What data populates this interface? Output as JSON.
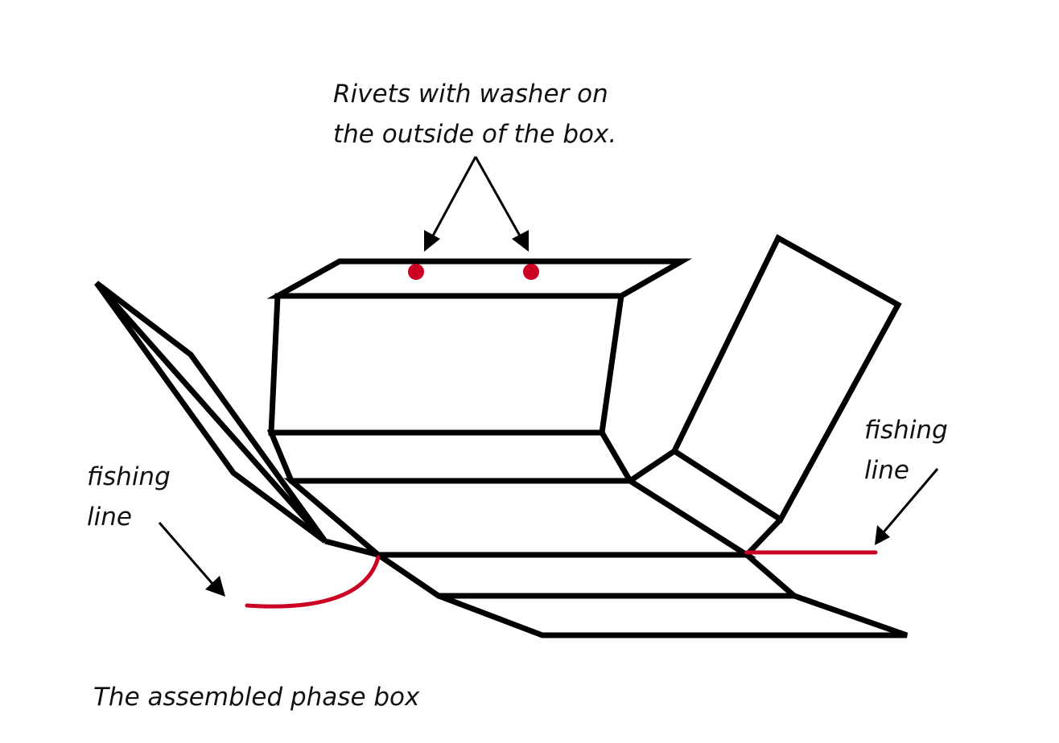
{
  "labels": {
    "rivets": {
      "line1": "Rivets with washer on",
      "line2": "the outside of the box."
    },
    "fishing_line_left": {
      "line1": "fishing",
      "line2": "line"
    },
    "fishing_line_right": {
      "line1": "fishing",
      "line2": "line"
    },
    "caption": "The assembled phase box"
  },
  "colors": {
    "outline": "#000000",
    "fishing_line": "#cc0022",
    "rivet": "#cc0022",
    "background": "#ffffff"
  }
}
